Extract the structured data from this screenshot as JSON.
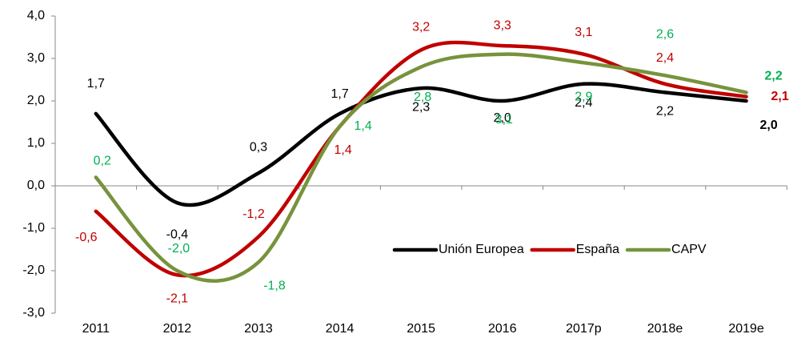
{
  "chart_data": {
    "type": "line",
    "categories": [
      "2011",
      "2012",
      "2013",
      "2014",
      "2015",
      "2016",
      "2017p",
      "2018e",
      "2019e"
    ],
    "series": [
      {
        "name": "Unión Europea",
        "color": "#000000",
        "label_color": "#000000",
        "values": [
          1.7,
          -0.4,
          0.3,
          1.7,
          2.3,
          2.0,
          2.4,
          2.2,
          2.0
        ],
        "value_labels": [
          "1,7",
          "-0,4",
          "0,3",
          "1,7",
          "2,3",
          "2,0",
          "2,4",
          "2,2",
          "2,0"
        ]
      },
      {
        "name": "España",
        "color": "#c00000",
        "label_color": "#c00000",
        "values": [
          -0.6,
          -2.1,
          -1.2,
          1.4,
          3.2,
          3.3,
          3.1,
          2.4,
          2.1
        ],
        "value_labels": [
          "-0,6",
          "-2,1",
          "-1,2",
          "1,4",
          "3,2",
          "3,3",
          "3,1",
          "2,4",
          "2,1"
        ]
      },
      {
        "name": "CAPV",
        "color": "#77933c",
        "label_color": "#00b050",
        "values": [
          0.2,
          -2.0,
          -1.8,
          1.4,
          2.8,
          3.1,
          2.9,
          2.6,
          2.2
        ],
        "value_labels": [
          "0,2",
          "-2,0",
          "-1,8",
          "1,4",
          "2,8",
          "3,1",
          "2,9",
          "2,6",
          "2,2"
        ]
      }
    ],
    "ylim": [
      -3,
      4
    ],
    "yticks": [
      {
        "value": -3,
        "label": "-3,0"
      },
      {
        "value": -2,
        "label": "-2,0"
      },
      {
        "value": -1,
        "label": "-1,0"
      },
      {
        "value": 0,
        "label": "0,0"
      },
      {
        "value": 1,
        "label": "1,0"
      },
      {
        "value": 2,
        "label": "2,0"
      },
      {
        "value": 3,
        "label": "3,0"
      },
      {
        "value": 4,
        "label": "4,0"
      }
    ],
    "legend": "lower right",
    "smooth": true
  }
}
